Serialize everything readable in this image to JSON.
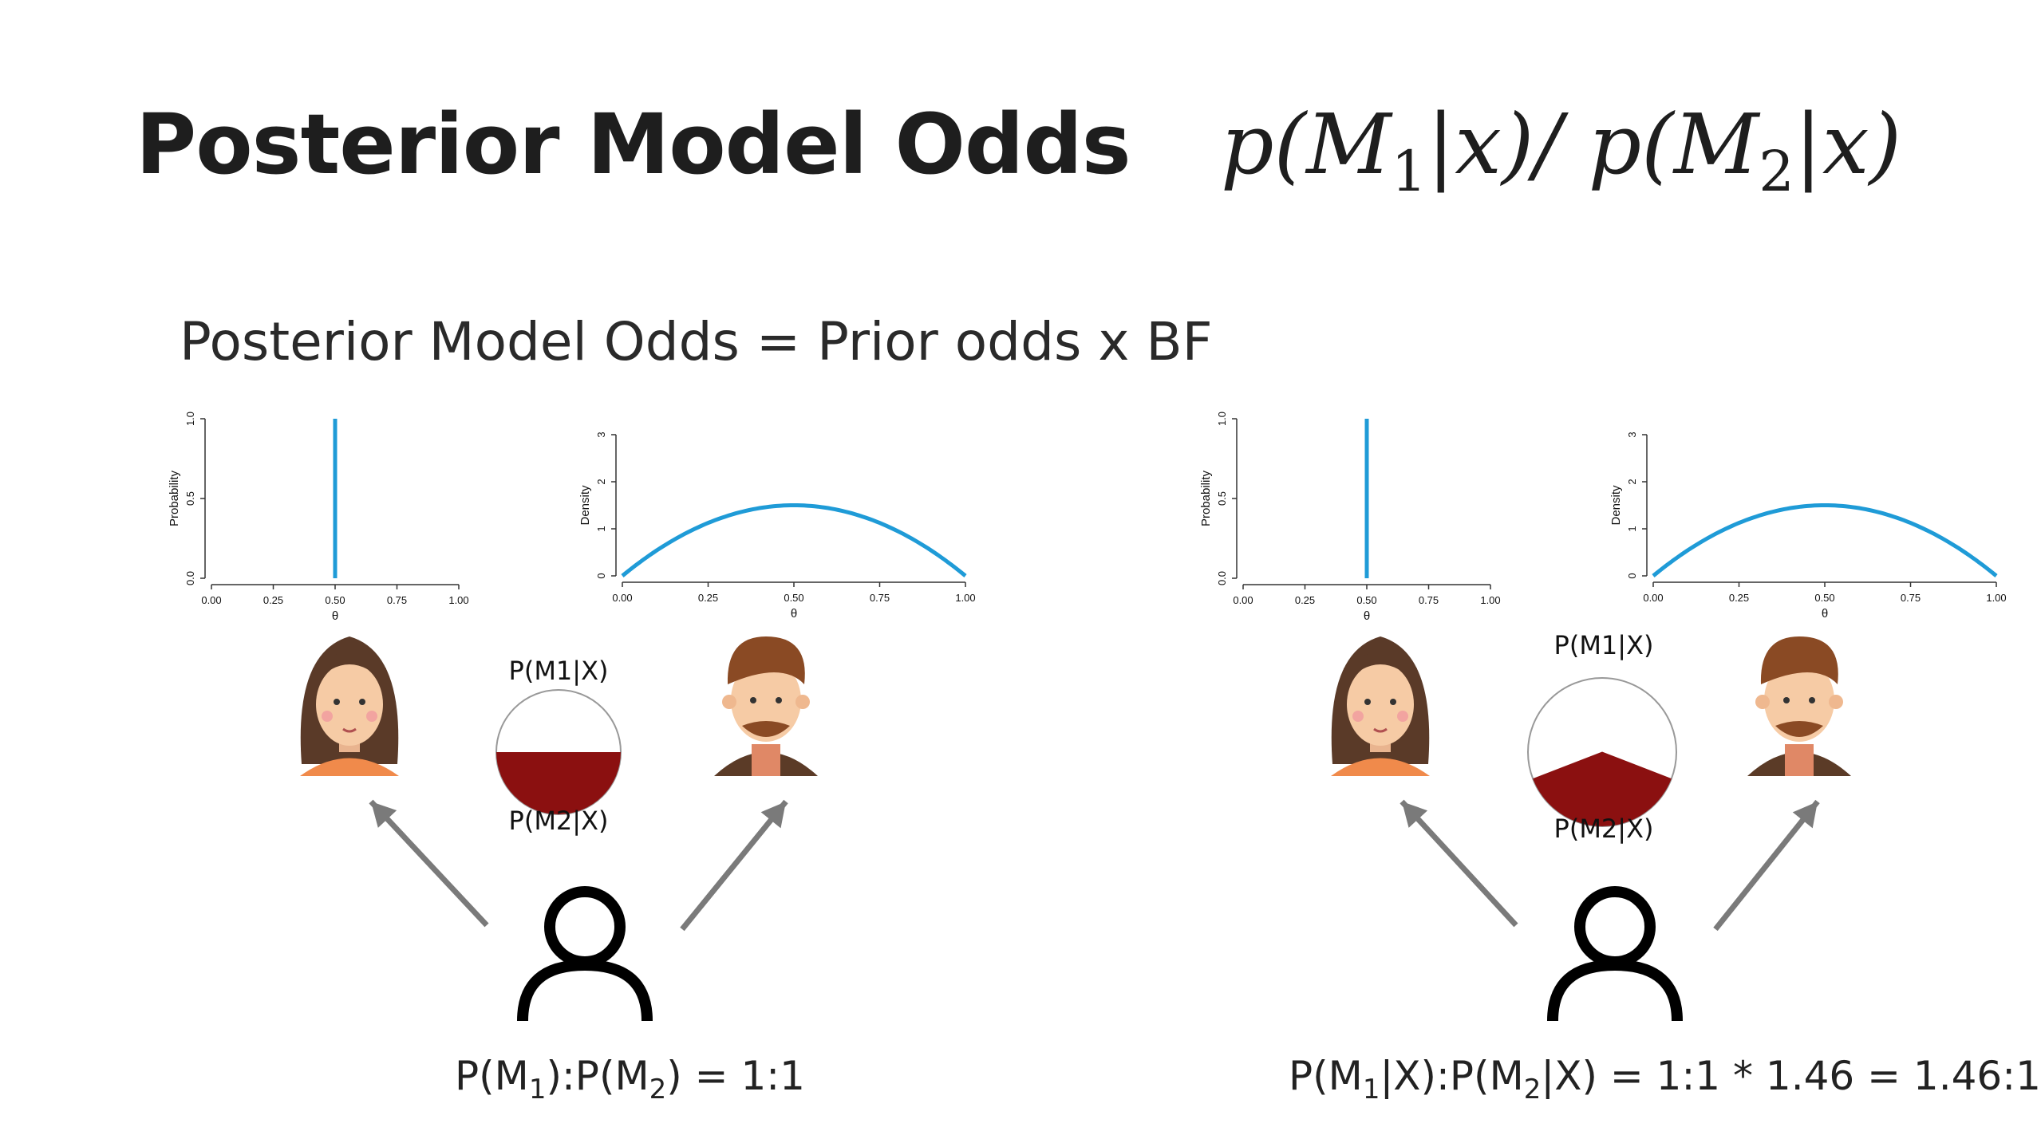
{
  "slide": {
    "title": "Posterior Model Odds",
    "formula": {
      "p": "p",
      "m": "M",
      "x": "x",
      "sub1": "1",
      "sub2": "2",
      "sep": "/"
    },
    "subtitle": "Posterior Model Odds = Prior odds x BF"
  },
  "panels": [
    {
      "pie": {
        "top_label": "P(M1|X)",
        "bottom_label": "P(M2|X)",
        "p_m1": 0.5,
        "p_m2": 0.5
      },
      "caption": {
        "a": "P(M",
        "b": "1",
        "c": "):P(M",
        "d": "2",
        "e": ") = 1:1"
      }
    },
    {
      "pie": {
        "top_label": "P(M1|X)",
        "bottom_label": "P(M2|X)",
        "p_m1": 0.594,
        "p_m2": 0.406
      },
      "caption": {
        "a": "P(M",
        "b": "1",
        "c": "|X):P(M",
        "d": "2",
        "e": "|X) = 1:1 * 1.46 = 1.46:1"
      }
    }
  ],
  "chart_data": [
    {
      "type": "line",
      "panel": "left-probability",
      "xlabel": "θ",
      "ylabel": "Probability",
      "x_ticks": [
        "0.00",
        "0.25",
        "0.50",
        "0.75",
        "1.00"
      ],
      "y_ticks": [
        "0.0",
        "0.5",
        "1.0"
      ],
      "xlim": [
        0,
        1
      ],
      "ylim": [
        0,
        1
      ],
      "spike": {
        "x": 0.5,
        "y": 1.0
      },
      "color": "#1f9bd7"
    },
    {
      "type": "line",
      "panel": "left-density",
      "xlabel": "θ",
      "ylabel": "Density",
      "x_ticks": [
        "0.00",
        "0.25",
        "0.50",
        "0.75",
        "1.00"
      ],
      "y_ticks": [
        "0",
        "1",
        "2",
        "3"
      ],
      "xlim": [
        0,
        1
      ],
      "ylim": [
        0,
        3
      ],
      "function": "6*x*(1-x)",
      "color": "#1f9bd7"
    },
    {
      "type": "line",
      "panel": "right-probability",
      "xlabel": "θ",
      "ylabel": "Probability",
      "x_ticks": [
        "0.00",
        "0.25",
        "0.50",
        "0.75",
        "1.00"
      ],
      "y_ticks": [
        "0.0",
        "0.5",
        "1.0"
      ],
      "xlim": [
        0,
        1
      ],
      "ylim": [
        0,
        1
      ],
      "spike": {
        "x": 0.5,
        "y": 1.0
      },
      "color": "#1f9bd7"
    },
    {
      "type": "line",
      "panel": "right-density",
      "xlabel": "θ",
      "ylabel": "Density",
      "x_ticks": [
        "0.00",
        "0.25",
        "0.50",
        "0.75",
        "1.00"
      ],
      "y_ticks": [
        "0",
        "1",
        "2",
        "3"
      ],
      "xlim": [
        0,
        1
      ],
      "ylim": [
        0,
        3
      ],
      "function": "6*x*(1-x)",
      "color": "#1f9bd7"
    }
  ],
  "colors": {
    "curve": "#1f9bd7",
    "pie_fill": "#8b1010",
    "arrow": "#7a7a7a",
    "title": "#1e1e1e"
  },
  "icons": [
    "woman-avatar-icon",
    "man-avatar-icon",
    "person-outline-icon",
    "arrow-up-left-icon",
    "arrow-up-right-icon"
  ]
}
